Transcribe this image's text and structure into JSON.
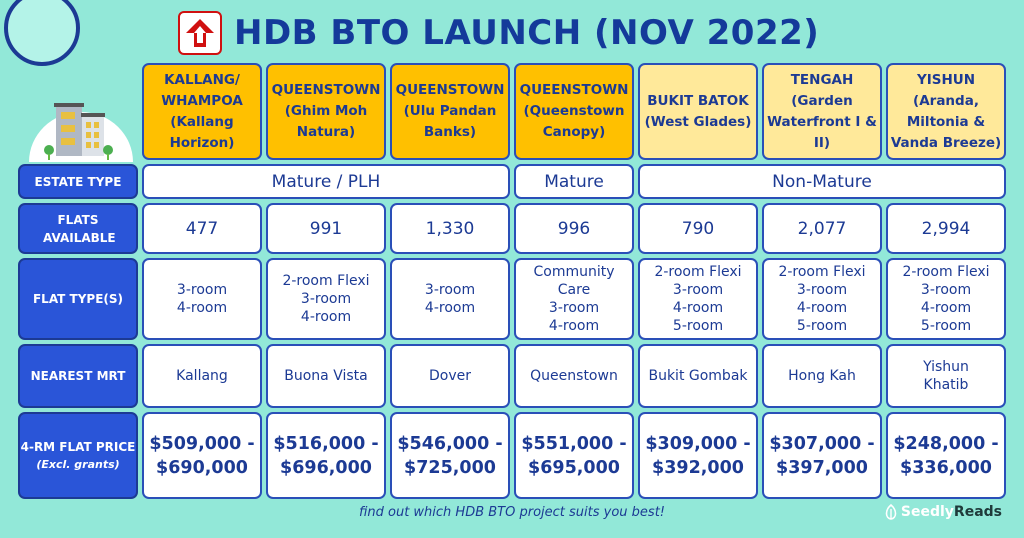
{
  "title": "HDB BTO LAUNCH (NOV 2022)",
  "logo_icon": "hdb-house-arrow-icon",
  "colors": {
    "background": "#92e8d8",
    "accent_blue": "#1c3a94",
    "label_blue": "#2a55d8",
    "mature_header": "#ffc000",
    "non_mature_header": "#ffe99a",
    "logo_red": "#d01010"
  },
  "row_labels": {
    "estate_type": "ESTATE TYPE",
    "flats_available": "FLATS AVAILABLE",
    "flat_types": "FLAT TYPE(S)",
    "nearest_mrt": "NEAREST MRT",
    "price": "4-RM FLAT PRICE",
    "price_note": "(Excl. grants)"
  },
  "estate_types": {
    "group1": "Mature / PLH",
    "group2": "Mature",
    "group3": "Non-Mature"
  },
  "projects": [
    {
      "town": "KALLANG/ WHAMPOA",
      "name": "(Kallang Horizon)",
      "flats": "477",
      "types": [
        "3-room",
        "4-room"
      ],
      "mrt": [
        "Kallang"
      ],
      "price_low": "$509,000 -",
      "price_high": "$690,000"
    },
    {
      "town": "QUEENSTOWN",
      "name": "(Ghim Moh Natura)",
      "flats": "991",
      "types": [
        "2-room Flexi",
        "3-room",
        "4-room"
      ],
      "mrt": [
        "Buona Vista"
      ],
      "price_low": "$516,000 -",
      "price_high": "$696,000"
    },
    {
      "town": "QUEENSTOWN",
      "name": "(Ulu Pandan Banks)",
      "flats": "1,330",
      "types": [
        "3-room",
        "4-room"
      ],
      "mrt": [
        "Dover"
      ],
      "price_low": "$546,000 -",
      "price_high": "$725,000"
    },
    {
      "town": "QUEENSTOWN",
      "name": "(Queenstown Canopy)",
      "flats": "996",
      "types": [
        "Community Care",
        "3-room",
        "4-room"
      ],
      "mrt": [
        "Queenstown"
      ],
      "price_low": "$551,000 -",
      "price_high": "$695,000"
    },
    {
      "town": "BUKIT BATOK",
      "name": "(West Glades)",
      "flats": "790",
      "types": [
        "2-room Flexi",
        "3-room",
        "4-room",
        "5-room"
      ],
      "mrt": [
        "Bukit Gombak"
      ],
      "price_low": "$309,000 -",
      "price_high": "$392,000"
    },
    {
      "town": "TENGAH",
      "name": "(Garden Waterfront I & II)",
      "flats": "2,077",
      "types": [
        "2-room Flexi",
        "3-room",
        "4-room",
        "5-room"
      ],
      "mrt": [
        "Hong Kah"
      ],
      "price_low": "$307,000 -",
      "price_high": "$397,000"
    },
    {
      "town": "YISHUN",
      "name": "(Aranda, Miltonia & Vanda Breeze)",
      "flats": "2,994",
      "types": [
        "2-room Flexi",
        "3-room",
        "4-room",
        "5-room"
      ],
      "mrt": [
        "Yishun",
        "Khatib"
      ],
      "price_low": "$248,000 -",
      "price_high": "$336,000"
    }
  ],
  "footer": "find out which HDB BTO project suits you best!",
  "brand": {
    "part1": "Seedly",
    "part2": "Reads"
  }
}
